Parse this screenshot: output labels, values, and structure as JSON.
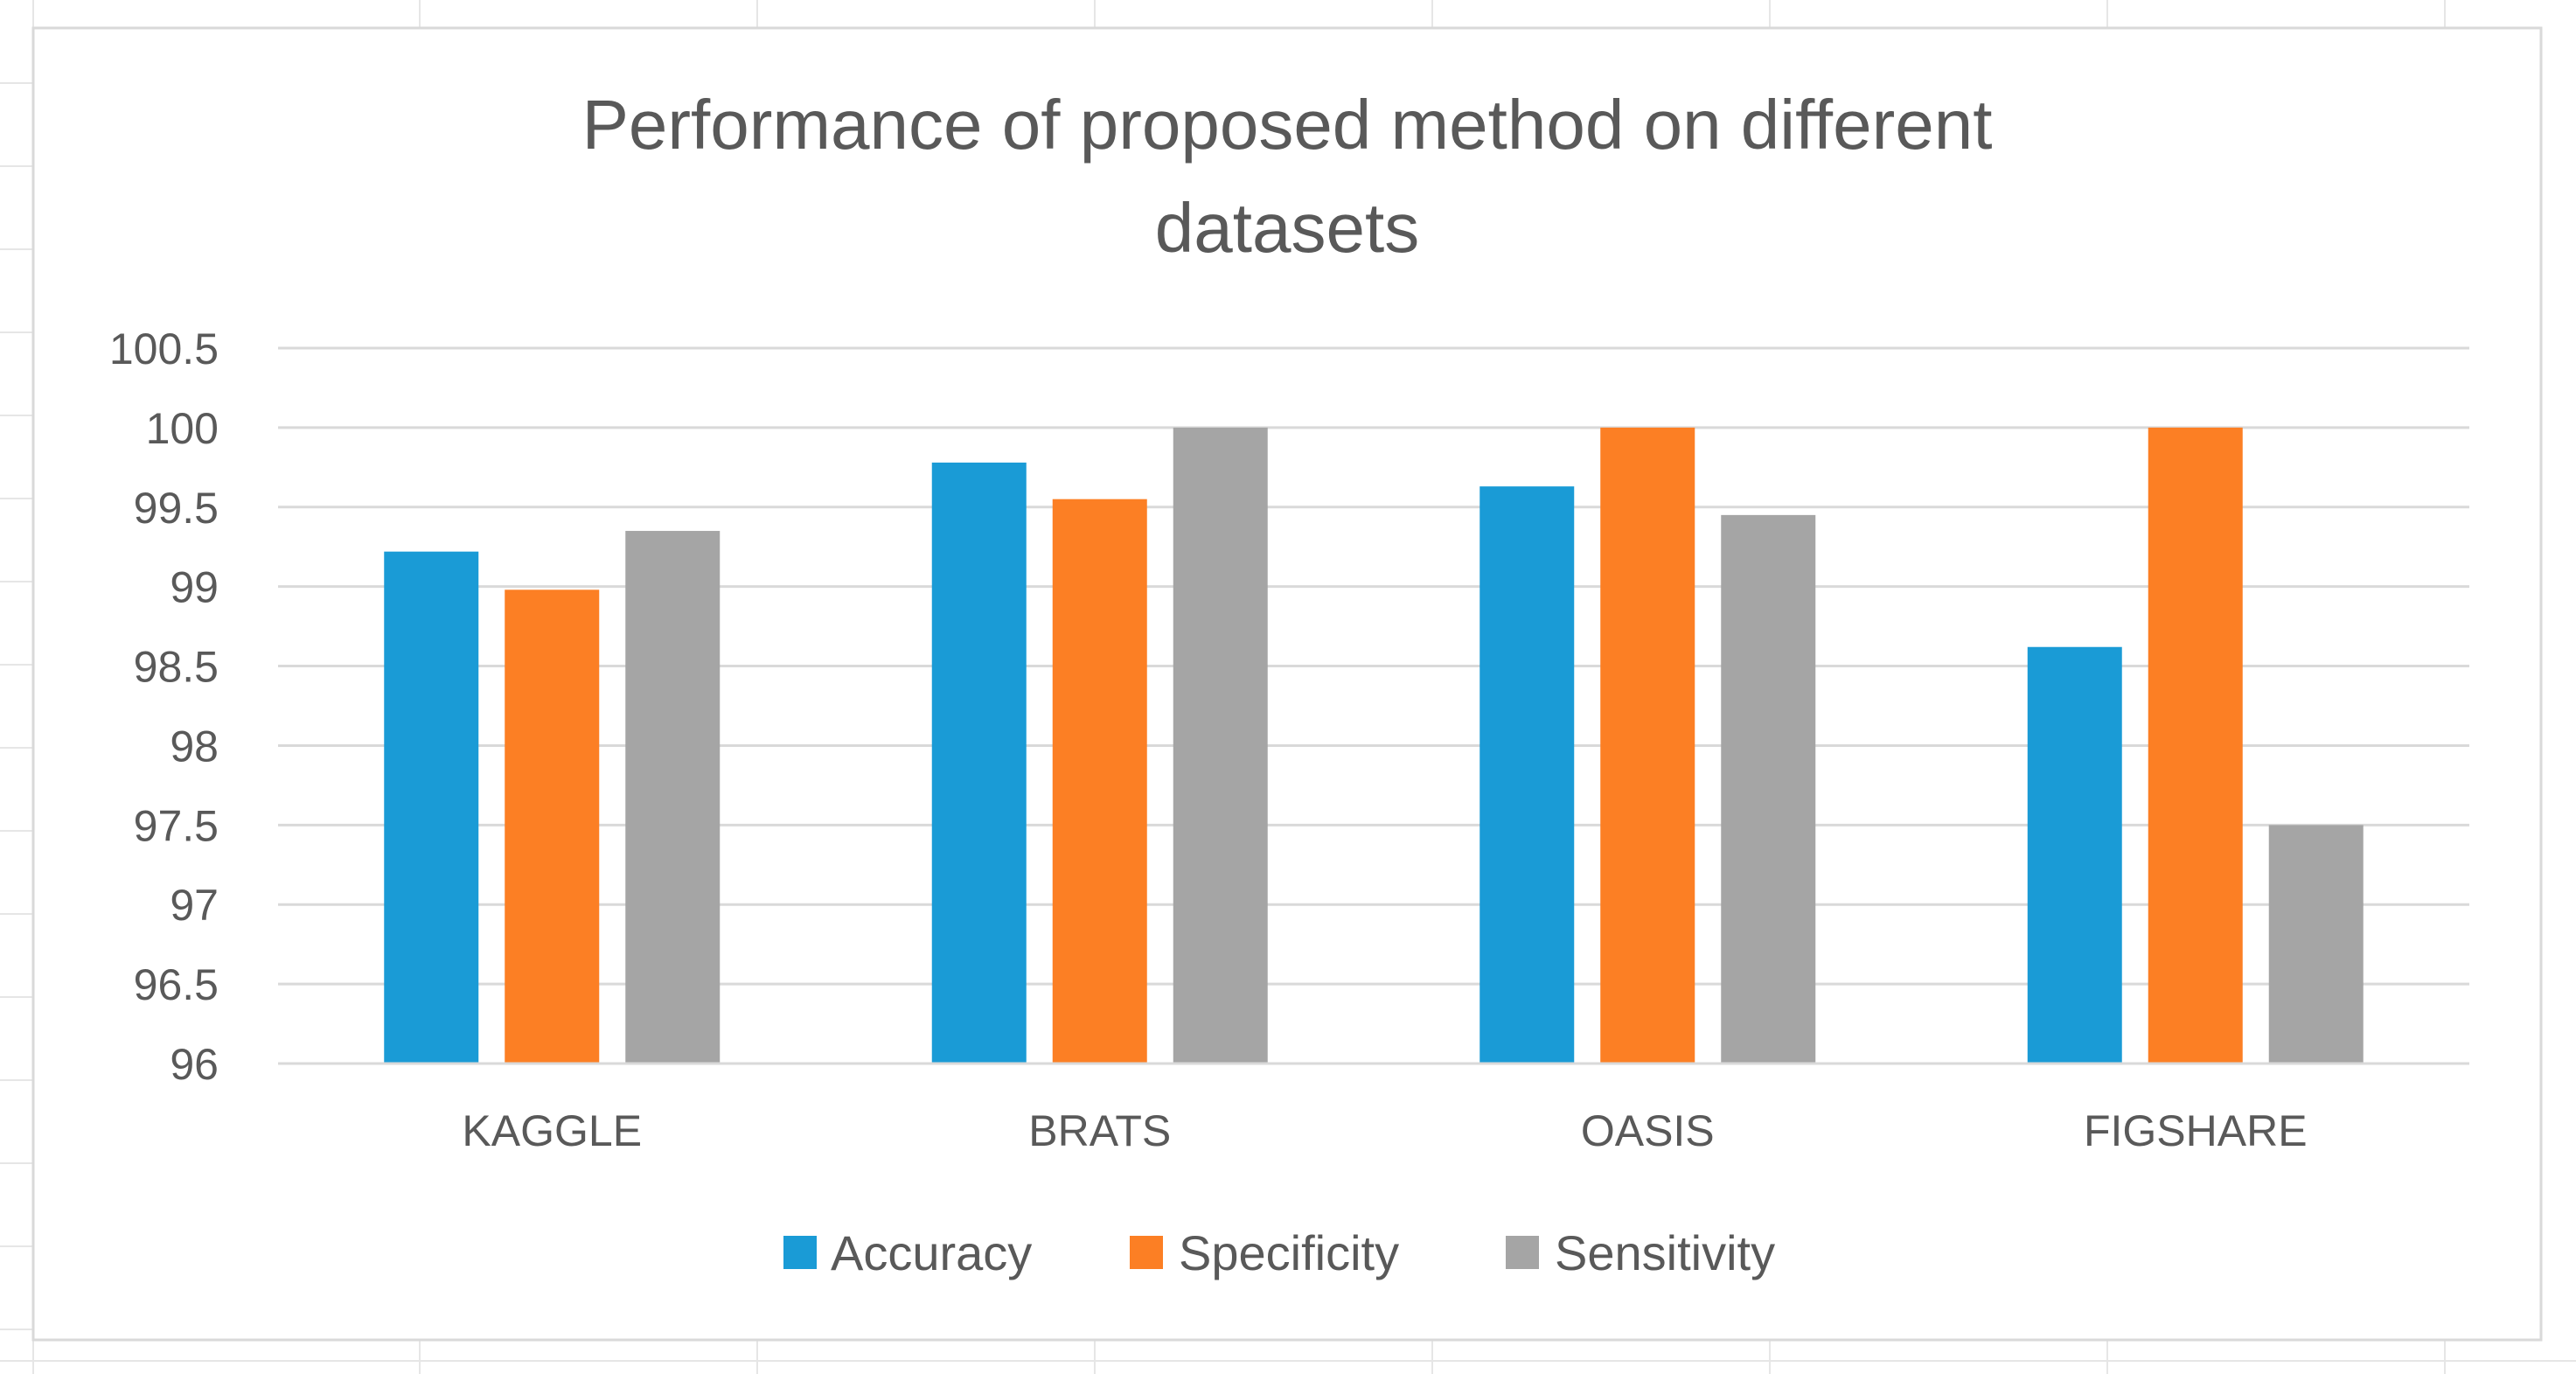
{
  "chart_data": {
    "type": "bar",
    "title_lines": [
      "Performance of proposed method on different",
      "datasets"
    ],
    "categories": [
      "KAGGLE",
      "BRATS",
      "OASIS",
      "FIGSHARE"
    ],
    "series": [
      {
        "name": "Accuracy",
        "values": [
          99.22,
          99.78,
          99.63,
          98.62
        ],
        "color": "#1a9bd6"
      },
      {
        "name": "Specificity",
        "values": [
          98.98,
          99.55,
          100,
          100
        ],
        "color": "#fc7f24"
      },
      {
        "name": "Sensitivity",
        "values": [
          99.35,
          100,
          99.45,
          97.5
        ],
        "color": "#a5a5a5"
      }
    ],
    "y_ticks": [
      "96",
      "96.5",
      "97",
      "97.5",
      "98",
      "98.5",
      "99",
      "99.5",
      "100",
      "100.5"
    ],
    "ylim": [
      96,
      100.5
    ],
    "xlabel": "",
    "ylabel": "",
    "legend_position": "bottom",
    "grid": true,
    "colors": {
      "grid": "#d9d9d9",
      "axis": "#d9d9d9",
      "border": "#d9d9d9",
      "sheet_grid": "#e6e6e6"
    }
  }
}
